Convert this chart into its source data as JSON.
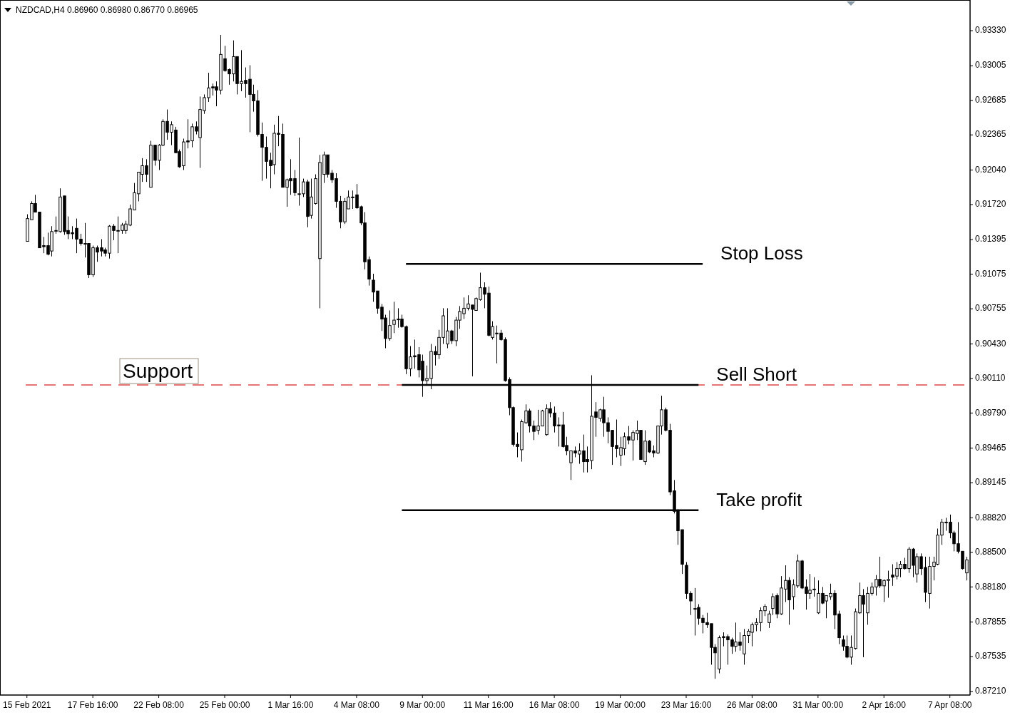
{
  "chart_data": {
    "type": "candlestick",
    "title": "NZDCAD,H4 0.86960 0.86980 0.86770 0.86965",
    "color": "#000000",
    "categories": [
      "15 Feb 2021",
      null,
      null,
      null,
      null,
      null,
      null,
      null,
      null,
      null,
      null,
      null,
      null,
      null,
      null,
      null,
      "17 Feb 16:00",
      null,
      null,
      null,
      null,
      null,
      null,
      null,
      null,
      null,
      null,
      null,
      null,
      null,
      null,
      null,
      "22 Feb 08:00",
      null,
      null,
      null,
      null,
      null,
      null,
      null,
      null,
      null,
      null,
      null,
      null,
      null,
      null,
      null,
      "25 Feb 00:00",
      null,
      null,
      null,
      null,
      null,
      null,
      null,
      null,
      null,
      null,
      null,
      null,
      null,
      null,
      null,
      "1 Mar 16:00",
      null,
      null,
      null,
      null,
      null,
      null,
      null,
      null,
      null,
      null,
      null,
      null,
      null,
      null,
      null,
      "4 Mar 08:00",
      null,
      null,
      null,
      null,
      null,
      null,
      null,
      null,
      null,
      null,
      null,
      null,
      null,
      null,
      null,
      "9 Mar 00:00",
      null,
      null,
      null,
      null,
      null,
      null,
      null,
      null,
      null,
      null,
      null,
      null,
      null,
      null,
      null,
      "11 Mar 16:00",
      null,
      null,
      null,
      null,
      null,
      null,
      null,
      null,
      null,
      null,
      null,
      null,
      null,
      null,
      null,
      "16 Mar 08:00",
      null,
      null,
      null,
      null,
      null,
      null,
      null,
      null,
      null,
      null,
      null,
      null,
      null,
      null,
      null,
      "19 Mar 00:00",
      null,
      null,
      null,
      null,
      null,
      null,
      null,
      null,
      null,
      null,
      null,
      null,
      null,
      null,
      null,
      "23 Mar 16:00",
      null,
      null,
      null,
      null,
      null,
      null,
      null,
      null,
      null,
      null,
      null,
      null,
      null,
      null,
      null,
      "26 Mar 08:00",
      null,
      null,
      null,
      null,
      null,
      null,
      null,
      null,
      null,
      null,
      null,
      null,
      null,
      null,
      null,
      "31 Mar 00:00",
      null,
      null,
      null,
      null,
      null,
      null,
      null,
      null,
      null,
      null,
      null,
      null,
      null,
      null,
      null,
      "2 Apr 16:00",
      null,
      null,
      null,
      null,
      null,
      null,
      null,
      null,
      null,
      null,
      null,
      null,
      null,
      null,
      null,
      "7 Apr 08:00",
      null,
      null,
      null,
      null
    ],
    "ohlc": [
      [
        0.9138,
        0.9163,
        0.9138,
        0.9159
      ],
      [
        0.9158,
        0.9175,
        0.9158,
        0.9173
      ],
      [
        0.9173,
        0.9181,
        0.9165,
        0.9165
      ],
      [
        0.9165,
        0.9165,
        0.9132,
        0.9132
      ],
      [
        0.9134,
        0.9142,
        0.9127,
        0.9133
      ],
      [
        0.9134,
        0.9146,
        0.9125,
        0.9126
      ],
      [
        0.9129,
        0.9152,
        0.9124,
        0.9147
      ],
      [
        0.9148,
        0.9161,
        0.9145,
        0.9148
      ],
      [
        0.9147,
        0.9187,
        0.9146,
        0.9179
      ],
      [
        0.918,
        0.918,
        0.9144,
        0.9147
      ],
      [
        0.9148,
        0.9161,
        0.914,
        0.9145
      ],
      [
        0.9146,
        0.9152,
        0.914,
        0.9145
      ],
      [
        0.915,
        0.9159,
        0.9127,
        0.914
      ],
      [
        0.914,
        0.9145,
        0.9134,
        0.9136
      ],
      [
        0.9136,
        0.9155,
        0.9123,
        0.9136
      ],
      [
        0.9136,
        0.9136,
        0.9104,
        0.9107
      ],
      [
        0.9107,
        0.9134,
        0.9105,
        0.9132
      ],
      [
        0.9132,
        0.9134,
        0.9119,
        0.9128
      ],
      [
        0.9132,
        0.914,
        0.9124,
        0.9129
      ],
      [
        0.913,
        0.9132,
        0.9124,
        0.9127
      ],
      [
        0.9127,
        0.9153,
        0.9122,
        0.9152
      ],
      [
        0.9152,
        0.9154,
        0.9139,
        0.9148
      ],
      [
        0.9148,
        0.9161,
        0.9127,
        0.9148
      ],
      [
        0.9148,
        0.9155,
        0.9145,
        0.9153
      ],
      [
        0.9148,
        0.9157,
        0.9145,
        0.9154
      ],
      [
        0.9153,
        0.9172,
        0.9152,
        0.9168
      ],
      [
        0.9167,
        0.9192,
        0.9167,
        0.9183
      ],
      [
        0.9182,
        0.9202,
        0.9175,
        0.9202
      ],
      [
        0.92,
        0.9215,
        0.9193,
        0.9208
      ],
      [
        0.9208,
        0.9214,
        0.9193,
        0.92
      ],
      [
        0.9188,
        0.9231,
        0.9188,
        0.9227
      ],
      [
        0.9227,
        0.9227,
        0.9208,
        0.9213
      ],
      [
        0.9213,
        0.9228,
        0.9204,
        0.9227
      ],
      [
        0.9227,
        0.9251,
        0.9226,
        0.9249
      ],
      [
        0.9249,
        0.926,
        0.9232,
        0.9239
      ],
      [
        0.9239,
        0.9249,
        0.9227,
        0.9246
      ],
      [
        0.9241,
        0.9244,
        0.922,
        0.922
      ],
      [
        0.9221,
        0.9223,
        0.9206,
        0.9207
      ],
      [
        0.9208,
        0.9233,
        0.9204,
        0.923
      ],
      [
        0.9231,
        0.9251,
        0.9224,
        0.923
      ],
      [
        0.9231,
        0.9247,
        0.9225,
        0.9244
      ],
      [
        0.9244,
        0.9249,
        0.9237,
        0.924
      ],
      [
        0.9234,
        0.9272,
        0.9206,
        0.926
      ],
      [
        0.9259,
        0.9274,
        0.9256,
        0.9271
      ],
      [
        0.9271,
        0.9294,
        0.9267,
        0.928
      ],
      [
        0.9281,
        0.9284,
        0.9273,
        0.928
      ],
      [
        0.9281,
        0.9286,
        0.9263,
        0.9278
      ],
      [
        0.9278,
        0.9329,
        0.9274,
        0.9311
      ],
      [
        0.9307,
        0.9319,
        0.9295,
        0.9296
      ],
      [
        0.9297,
        0.9298,
        0.9283,
        0.9293
      ],
      [
        0.9293,
        0.9324,
        0.9286,
        0.9309
      ],
      [
        0.9309,
        0.9309,
        0.9274,
        0.9284
      ],
      [
        0.9284,
        0.9315,
        0.9277,
        0.9286
      ],
      [
        0.9287,
        0.9299,
        0.9271,
        0.9284
      ],
      [
        0.9288,
        0.9301,
        0.9239,
        0.9274
      ],
      [
        0.9274,
        0.9283,
        0.9258,
        0.9268
      ],
      [
        0.9268,
        0.9278,
        0.9235,
        0.9237
      ],
      [
        0.9237,
        0.9248,
        0.9194,
        0.9225
      ],
      [
        0.9225,
        0.9235,
        0.9196,
        0.9212
      ],
      [
        0.9213,
        0.922,
        0.9187,
        0.9208
      ],
      [
        0.9209,
        0.9246,
        0.92,
        0.9238
      ],
      [
        0.9238,
        0.9254,
        0.9226,
        0.9237
      ],
      [
        0.9237,
        0.9247,
        0.9188,
        0.9188
      ],
      [
        0.9188,
        0.9196,
        0.917,
        0.9195
      ],
      [
        0.9196,
        0.9214,
        0.9181,
        0.9194
      ],
      [
        0.9196,
        0.9204,
        0.918,
        0.9183
      ],
      [
        0.9182,
        0.9234,
        0.9171,
        0.9182
      ],
      [
        0.9182,
        0.9196,
        0.9179,
        0.9193
      ],
      [
        0.9193,
        0.9195,
        0.9151,
        0.9161
      ],
      [
        0.9162,
        0.9196,
        0.9159,
        0.9179
      ],
      [
        0.9173,
        0.92,
        0.9172,
        0.9196
      ],
      [
        0.9122,
        0.9218,
        0.9076,
        0.9211
      ],
      [
        0.92,
        0.9221,
        0.9192,
        0.9218
      ],
      [
        0.9218,
        0.9218,
        0.9197,
        0.92
      ],
      [
        0.9201,
        0.9204,
        0.9192,
        0.9195
      ],
      [
        0.9196,
        0.9201,
        0.9169,
        0.9175
      ],
      [
        0.9175,
        0.918,
        0.915,
        0.9156
      ],
      [
        0.9156,
        0.9178,
        0.9154,
        0.9175
      ],
      [
        0.9168,
        0.9185,
        0.9168,
        0.9179
      ],
      [
        0.9179,
        0.9185,
        0.9168,
        0.9179
      ],
      [
        0.9181,
        0.9191,
        0.9168,
        0.9169
      ],
      [
        0.917,
        0.9171,
        0.9153,
        0.9155
      ],
      [
        0.9155,
        0.9165,
        0.9112,
        0.9119
      ],
      [
        0.9121,
        0.9124,
        0.9097,
        0.9103
      ],
      [
        0.9102,
        0.9108,
        0.9082,
        0.9091
      ],
      [
        0.9092,
        0.9092,
        0.9071,
        0.9076
      ],
      [
        0.9077,
        0.908,
        0.9055,
        0.9066
      ],
      [
        0.9067,
        0.907,
        0.9039,
        0.9048
      ],
      [
        0.9048,
        0.9074,
        0.9046,
        0.906
      ],
      [
        0.9061,
        0.9082,
        0.9053,
        0.9065
      ],
      [
        0.9066,
        0.9076,
        0.9058,
        0.9066
      ],
      [
        0.9066,
        0.907,
        0.9058,
        0.9059
      ],
      [
        0.9059,
        0.906,
        0.9015,
        0.902
      ],
      [
        0.902,
        0.9041,
        0.9013,
        0.9031
      ],
      [
        0.9032,
        0.9047,
        0.902,
        0.9031
      ],
      [
        0.9033,
        0.904,
        0.9012,
        0.9019
      ],
      [
        0.9027,
        0.9033,
        0.8994,
        0.9009
      ],
      [
        0.9009,
        0.9023,
        0.9005,
        0.9011
      ],
      [
        0.9011,
        0.9043,
        0.9001,
        0.9036
      ],
      [
        0.9036,
        0.9041,
        0.9023,
        0.9033
      ],
      [
        0.9033,
        0.9056,
        0.9029,
        0.9049
      ],
      [
        0.9049,
        0.9076,
        0.9043,
        0.9069
      ],
      [
        0.9043,
        0.9076,
        0.9039,
        0.9055
      ],
      [
        0.9055,
        0.9056,
        0.9043,
        0.9046
      ],
      [
        0.9046,
        0.9068,
        0.9041,
        0.9065
      ],
      [
        0.9065,
        0.9078,
        0.9057,
        0.9073
      ],
      [
        0.9071,
        0.9086,
        0.9066,
        0.9076
      ],
      [
        0.9076,
        0.9088,
        0.9074,
        0.908
      ],
      [
        0.9079,
        0.9079,
        0.9013,
        0.9075
      ],
      [
        0.9074,
        0.9086,
        0.9074,
        0.9085
      ],
      [
        0.9084,
        0.9109,
        0.9083,
        0.9095
      ],
      [
        0.9095,
        0.91,
        0.9076,
        0.9089
      ],
      [
        0.909,
        0.9096,
        0.905,
        0.9051
      ],
      [
        0.9049,
        0.9064,
        0.9047,
        0.9059
      ],
      [
        0.9053,
        0.906,
        0.9025,
        0.9053
      ],
      [
        0.9053,
        0.9056,
        0.9046,
        0.9047
      ],
      [
        0.9047,
        0.9049,
        0.9008,
        0.9009
      ],
      [
        0.901,
        0.9012,
        0.8977,
        0.8984
      ],
      [
        0.8984,
        0.8985,
        0.8948,
        0.895
      ],
      [
        0.895,
        0.8961,
        0.8938,
        0.8948
      ],
      [
        0.8945,
        0.8973,
        0.8934,
        0.8971
      ],
      [
        0.897,
        0.8987,
        0.8969,
        0.8981
      ],
      [
        0.8981,
        0.8983,
        0.8961,
        0.8967
      ],
      [
        0.8967,
        0.8972,
        0.8954,
        0.8962
      ],
      [
        0.8963,
        0.8982,
        0.8959,
        0.8967
      ],
      [
        0.8967,
        0.8982,
        0.8967,
        0.8981
      ],
      [
        0.8959,
        0.8987,
        0.8958,
        0.8983
      ],
      [
        0.8983,
        0.8989,
        0.8975,
        0.8979
      ],
      [
        0.8979,
        0.8985,
        0.8961,
        0.8967
      ],
      [
        0.8968,
        0.8975,
        0.8948,
        0.8967
      ],
      [
        0.8968,
        0.898,
        0.8947,
        0.8948
      ],
      [
        0.8949,
        0.8957,
        0.894,
        0.8944
      ],
      [
        0.8933,
        0.8944,
        0.8917,
        0.8944
      ],
      [
        0.8944,
        0.8948,
        0.8938,
        0.8942
      ],
      [
        0.8941,
        0.8951,
        0.8932,
        0.8944
      ],
      [
        0.8944,
        0.8959,
        0.8924,
        0.8934
      ],
      [
        0.8936,
        0.8948,
        0.8924,
        0.8934
      ],
      [
        0.8935,
        0.9014,
        0.8927,
        0.8976
      ],
      [
        0.898,
        0.8989,
        0.8957,
        0.8975
      ],
      [
        0.8974,
        0.8983,
        0.8971,
        0.8982
      ],
      [
        0.8982,
        0.8994,
        0.8957,
        0.897
      ],
      [
        0.897,
        0.8975,
        0.8951,
        0.8962
      ],
      [
        0.8963,
        0.8963,
        0.8931,
        0.8948
      ],
      [
        0.8949,
        0.8973,
        0.8938,
        0.8946
      ],
      [
        0.894,
        0.8957,
        0.893,
        0.8947
      ],
      [
        0.8946,
        0.8961,
        0.894,
        0.8957
      ],
      [
        0.8957,
        0.8967,
        0.895,
        0.8954
      ],
      [
        0.8954,
        0.8963,
        0.8935,
        0.8961
      ],
      [
        0.896,
        0.8972,
        0.8954,
        0.8963
      ],
      [
        0.8963,
        0.8963,
        0.8936,
        0.8936
      ],
      [
        0.8934,
        0.8963,
        0.8931,
        0.8953
      ],
      [
        0.8953,
        0.8954,
        0.8942,
        0.8943
      ],
      [
        0.8944,
        0.8949,
        0.8938,
        0.8942
      ],
      [
        0.8942,
        0.8967,
        0.8941,
        0.8967
      ],
      [
        0.8967,
        0.8995,
        0.8959,
        0.8982
      ],
      [
        0.8982,
        0.8984,
        0.8962,
        0.8963
      ],
      [
        0.8963,
        0.8969,
        0.8903,
        0.8906
      ],
      [
        0.8907,
        0.8917,
        0.8886,
        0.8888
      ],
      [
        0.8889,
        0.889,
        0.8857,
        0.887
      ],
      [
        0.8871,
        0.8871,
        0.883,
        0.8839
      ],
      [
        0.8838,
        0.8841,
        0.8807,
        0.8812
      ],
      [
        0.8812,
        0.8814,
        0.8792,
        0.8805
      ],
      [
        0.8798,
        0.8817,
        0.8773,
        0.8798
      ],
      [
        0.8799,
        0.8802,
        0.8783,
        0.8789
      ],
      [
        0.8789,
        0.8792,
        0.8775,
        0.8785
      ],
      [
        0.8785,
        0.8794,
        0.878,
        0.8783
      ],
      [
        0.8784,
        0.8784,
        0.8746,
        0.8762
      ],
      [
        0.8762,
        0.8765,
        0.8733,
        0.8757
      ],
      [
        0.8742,
        0.8773,
        0.8738,
        0.8771
      ],
      [
        0.8772,
        0.8776,
        0.8763,
        0.8771
      ],
      [
        0.8772,
        0.8774,
        0.8746,
        0.8769
      ],
      [
        0.8769,
        0.8771,
        0.8756,
        0.8763
      ],
      [
        0.8763,
        0.8785,
        0.8758,
        0.8767
      ],
      [
        0.8767,
        0.8776,
        0.8759,
        0.8764
      ],
      [
        0.8756,
        0.8779,
        0.8746,
        0.8773
      ],
      [
        0.8773,
        0.8779,
        0.8766,
        0.8777
      ],
      [
        0.8776,
        0.8785,
        0.8763,
        0.8783
      ],
      [
        0.8783,
        0.8789,
        0.8777,
        0.8785
      ],
      [
        0.8785,
        0.8799,
        0.8777,
        0.8796
      ],
      [
        0.8796,
        0.8802,
        0.8791,
        0.88
      ],
      [
        0.8785,
        0.8796,
        0.878,
        0.8793
      ],
      [
        0.8798,
        0.8812,
        0.8792,
        0.8809
      ],
      [
        0.881,
        0.8812,
        0.8789,
        0.8793
      ],
      [
        0.8793,
        0.8828,
        0.8792,
        0.8817
      ],
      [
        0.8816,
        0.8838,
        0.8804,
        0.8824
      ],
      [
        0.8824,
        0.8827,
        0.8783,
        0.8806
      ],
      [
        0.8809,
        0.8825,
        0.8797,
        0.882
      ],
      [
        0.8819,
        0.8848,
        0.8817,
        0.8842
      ],
      [
        0.8842,
        0.8843,
        0.8816,
        0.8817
      ],
      [
        0.8818,
        0.8825,
        0.8797,
        0.8812
      ],
      [
        0.8812,
        0.883,
        0.8807,
        0.8815
      ],
      [
        0.8816,
        0.8827,
        0.8809,
        0.8816
      ],
      [
        0.8794,
        0.8824,
        0.8793,
        0.8812
      ],
      [
        0.8812,
        0.8818,
        0.8802,
        0.8803
      ],
      [
        0.8805,
        0.881,
        0.8789,
        0.881
      ],
      [
        0.8809,
        0.8821,
        0.8806,
        0.8812
      ],
      [
        0.8812,
        0.8815,
        0.8779,
        0.8792
      ],
      [
        0.8793,
        0.8796,
        0.8765,
        0.8771
      ],
      [
        0.8769,
        0.8773,
        0.8759,
        0.8763
      ],
      [
        0.8763,
        0.8773,
        0.8752,
        0.8753
      ],
      [
        0.8753,
        0.8773,
        0.8746,
        0.8762
      ],
      [
        0.8761,
        0.8798,
        0.876,
        0.8795
      ],
      [
        0.8794,
        0.8822,
        0.8793,
        0.881
      ],
      [
        0.881,
        0.8816,
        0.8753,
        0.8802
      ],
      [
        0.8794,
        0.8818,
        0.8783,
        0.8812
      ],
      [
        0.8812,
        0.8822,
        0.881,
        0.8818
      ],
      [
        0.8818,
        0.8829,
        0.881,
        0.8825
      ],
      [
        0.8825,
        0.8846,
        0.8817,
        0.8819
      ],
      [
        0.8819,
        0.8825,
        0.8804,
        0.8824
      ],
      [
        0.8824,
        0.8833,
        0.8808,
        0.8825
      ],
      [
        0.8829,
        0.8839,
        0.8819,
        0.8827
      ],
      [
        0.8828,
        0.8841,
        0.8825,
        0.8835
      ],
      [
        0.8835,
        0.8842,
        0.8827,
        0.8839
      ],
      [
        0.8839,
        0.8845,
        0.8834,
        0.8835
      ],
      [
        0.8835,
        0.8855,
        0.8831,
        0.8853
      ],
      [
        0.8853,
        0.8854,
        0.8827,
        0.8838
      ],
      [
        0.883,
        0.8849,
        0.8822,
        0.8846
      ],
      [
        0.8846,
        0.8849,
        0.8829,
        0.8835
      ],
      [
        0.8836,
        0.8846,
        0.8804,
        0.8813
      ],
      [
        0.8812,
        0.8846,
        0.8798,
        0.8837
      ],
      [
        0.8837,
        0.8846,
        0.8824,
        0.8841
      ],
      [
        0.8839,
        0.8872,
        0.8838,
        0.8866
      ],
      [
        0.8866,
        0.8881,
        0.8857,
        0.8878
      ],
      [
        0.8878,
        0.8882,
        0.887,
        0.8878
      ],
      [
        0.8878,
        0.8885,
        0.8863,
        0.8868
      ],
      [
        0.8868,
        0.887,
        0.8851,
        0.8858
      ],
      [
        0.8858,
        0.8878,
        0.8849,
        0.8851
      ],
      [
        0.8851,
        0.8851,
        0.8834,
        0.8835
      ],
      [
        0.8831,
        0.8846,
        0.8824,
        0.8843
      ]
    ],
    "series": [
      {
        "type": "line",
        "name": "Stop Loss",
        "color": "#000000",
        "values": [
          null,
          null,
          null,
          null,
          null,
          null,
          null,
          null,
          null,
          null,
          null,
          null,
          null,
          null,
          null,
          null,
          null,
          null,
          null,
          null,
          null,
          null,
          null,
          null,
          null,
          null,
          null,
          null,
          null,
          null,
          null,
          null,
          null,
          null,
          null,
          null,
          null,
          null,
          null,
          null,
          null,
          null,
          null,
          null,
          null,
          null,
          null,
          null,
          null,
          null,
          null,
          null,
          null,
          null,
          null,
          null,
          null,
          null,
          null,
          null,
          null,
          null,
          null,
          null,
          null,
          null,
          null,
          null,
          null,
          null,
          null,
          null,
          null,
          null,
          null,
          null,
          null,
          null,
          null,
          null,
          null,
          null,
          null,
          null,
          null,
          null,
          null,
          null,
          null,
          null,
          null,
          null,
          0.9117,
          0.9117,
          0.9117,
          0.9117,
          0.9117,
          0.9117,
          0.9117,
          0.9117,
          0.9117,
          0.9117,
          0.9117,
          0.9117,
          0.9117,
          0.9117,
          0.9117,
          0.9117,
          0.9117,
          0.9117,
          0.9117,
          0.9117,
          0.9117,
          0.9117,
          0.9117,
          0.9117,
          0.9117,
          0.9117,
          0.9117,
          0.9117,
          0.9117,
          0.9117,
          0.9117,
          0.9117,
          0.9117,
          0.9117,
          0.9117,
          0.9117,
          0.9117,
          0.9117,
          0.9117,
          0.9117,
          0.9117,
          0.9117,
          0.9117,
          0.9117,
          0.9117,
          0.9117,
          0.9117,
          0.9117,
          0.9117,
          0.9117,
          0.9117,
          0.9117,
          0.9117,
          0.9117,
          0.9117,
          0.9117,
          0.9117,
          0.9117,
          0.9117,
          0.9117,
          0.9117,
          0.9117,
          0.9117,
          0.9117,
          0.9117,
          0.9117,
          0.9117,
          0.9117,
          0.9117,
          0.9117,
          0.9117,
          0.9117,
          0.9117,
          null,
          null,
          null,
          null,
          null,
          null,
          null,
          null,
          null,
          null,
          null,
          null,
          null,
          null,
          null,
          null,
          null,
          null,
          null,
          null,
          null,
          null,
          null,
          null,
          null,
          null,
          null,
          null,
          null,
          null,
          null,
          null,
          null,
          null,
          null,
          null,
          null,
          null,
          null,
          null,
          null,
          null,
          null,
          null,
          null,
          null,
          null,
          null,
          null,
          null,
          null,
          null,
          null,
          null,
          null,
          null,
          null,
          null,
          null,
          null,
          null,
          null,
          null,
          null
        ]
      },
      {
        "type": "line",
        "name": "Sell Short",
        "color": "#000000",
        "values": [
          null,
          null,
          null,
          null,
          null,
          null,
          null,
          null,
          null,
          null,
          null,
          null,
          null,
          null,
          null,
          null,
          null,
          null,
          null,
          null,
          null,
          null,
          null,
          null,
          null,
          null,
          null,
          null,
          null,
          null,
          null,
          null,
          null,
          null,
          null,
          null,
          null,
          null,
          null,
          null,
          null,
          null,
          null,
          null,
          null,
          null,
          null,
          null,
          null,
          null,
          null,
          null,
          null,
          null,
          null,
          null,
          null,
          null,
          null,
          null,
          null,
          null,
          null,
          null,
          null,
          null,
          null,
          null,
          null,
          null,
          null,
          null,
          null,
          null,
          null,
          null,
          null,
          null,
          null,
          null,
          null,
          null,
          null,
          null,
          null,
          null,
          null,
          null,
          null,
          null,
          null,
          0.9005,
          0.9005,
          0.9005,
          0.9005,
          0.9005,
          0.9005,
          0.9005,
          0.9005,
          0.9005,
          0.9005,
          0.9005,
          0.9005,
          0.9005,
          0.9005,
          0.9005,
          0.9005,
          0.9005,
          0.9005,
          0.9005,
          0.9005,
          0.9005,
          0.9005,
          0.9005,
          0.9005,
          0.9005,
          0.9005,
          0.9005,
          0.9005,
          0.9005,
          0.9005,
          0.9005,
          0.9005,
          0.9005,
          0.9005,
          0.9005,
          0.9005,
          0.9005,
          0.9005,
          0.9005,
          0.9005,
          0.9005,
          0.9005,
          0.9005,
          0.9005,
          0.9005,
          0.9005,
          0.9005,
          0.9005,
          0.9005,
          0.9005,
          0.9005,
          0.9005,
          0.9005,
          0.9005,
          0.9005,
          0.9005,
          0.9005,
          0.9005,
          0.9005,
          0.9005,
          0.9005,
          0.9005,
          0.9005,
          0.9005,
          0.9005,
          0.9005,
          0.9005,
          0.9005,
          0.9005,
          0.9005,
          0.9005,
          0.9005,
          0.9005,
          null,
          null,
          null,
          null,
          null,
          null,
          null,
          null,
          null,
          null,
          null,
          null,
          null,
          null,
          null,
          null,
          null,
          null,
          null,
          null,
          null,
          null,
          null,
          null,
          null,
          null,
          null,
          null,
          null,
          null,
          null,
          null,
          null,
          null,
          null,
          null,
          null,
          null,
          null,
          null,
          null,
          null,
          null,
          null,
          null,
          null,
          null,
          null,
          null,
          null,
          null,
          null,
          null,
          null,
          null,
          null,
          null,
          null,
          null,
          null,
          null,
          null,
          null,
          null,
          null
        ]
      },
      {
        "type": "line",
        "name": "Take profit",
        "color": "#000000",
        "values": [
          null,
          null,
          null,
          null,
          null,
          null,
          null,
          null,
          null,
          null,
          null,
          null,
          null,
          null,
          null,
          null,
          null,
          null,
          null,
          null,
          null,
          null,
          null,
          null,
          null,
          null,
          null,
          null,
          null,
          null,
          null,
          null,
          null,
          null,
          null,
          null,
          null,
          null,
          null,
          null,
          null,
          null,
          null,
          null,
          null,
          null,
          null,
          null,
          null,
          null,
          null,
          null,
          null,
          null,
          null,
          null,
          null,
          null,
          null,
          null,
          null,
          null,
          null,
          null,
          null,
          null,
          null,
          null,
          null,
          null,
          null,
          null,
          null,
          null,
          null,
          null,
          null,
          null,
          null,
          null,
          null,
          null,
          null,
          null,
          null,
          null,
          null,
          null,
          null,
          null,
          null,
          0.8889,
          0.8889,
          0.8889,
          0.8889,
          0.8889,
          0.8889,
          0.8889,
          0.8889,
          0.8889,
          0.8889,
          0.8889,
          0.8889,
          0.8889,
          0.8889,
          0.8889,
          0.8889,
          0.8889,
          0.8889,
          0.8889,
          0.8889,
          0.8889,
          0.8889,
          0.8889,
          0.8889,
          0.8889,
          0.8889,
          0.8889,
          0.8889,
          0.8889,
          0.8889,
          0.8889,
          0.8889,
          0.8889,
          0.8889,
          0.8889,
          0.8889,
          0.8889,
          0.8889,
          0.8889,
          0.8889,
          0.8889,
          0.8889,
          0.8889,
          0.8889,
          0.8889,
          0.8889,
          0.8889,
          0.8889,
          0.8889,
          0.8889,
          0.8889,
          0.8889,
          0.8889,
          0.8889,
          0.8889,
          0.8889,
          0.8889,
          0.8889,
          0.8889,
          0.8889,
          0.8889,
          0.8889,
          0.8889,
          0.8889,
          0.8889,
          0.8889,
          0.8889,
          0.8889,
          0.8889,
          0.8889,
          0.8889,
          0.8889,
          0.8889,
          null,
          null,
          null,
          null,
          null,
          null,
          null,
          null,
          null,
          null,
          null,
          null,
          null,
          null,
          null,
          null,
          null,
          null,
          null,
          null,
          null,
          null,
          null,
          null,
          null,
          null,
          null,
          null,
          null,
          null,
          null,
          null,
          null,
          null,
          null,
          null,
          null,
          null,
          null,
          null,
          null,
          null,
          null,
          null,
          null,
          null,
          null,
          null,
          null,
          null,
          null,
          null,
          null,
          null,
          null,
          null,
          null,
          null,
          null,
          null,
          null,
          null,
          null,
          null,
          null
        ]
      }
    ],
    "ref_lines": [
      {
        "axis": "y",
        "value": 0.9005,
        "label": "Support",
        "color": "#e04848",
        "line_style": "dashed"
      }
    ],
    "ylim": [
      0.87179,
      0.93614
    ],
    "yticks": [
      {
        "value": 0.9333,
        "label": "0.93330"
      },
      {
        "value": 0.93005,
        "label": "0.93005"
      },
      {
        "value": 0.92685,
        "label": "0.92685"
      },
      {
        "value": 0.92365,
        "label": "0.92365"
      },
      {
        "value": 0.9204,
        "label": "0.92040"
      },
      {
        "value": 0.9172,
        "label": "0.91720"
      },
      {
        "value": 0.91395,
        "label": "0.91395"
      },
      {
        "value": 0.91075,
        "label": "0.91075"
      },
      {
        "value": 0.90755,
        "label": "0.90755"
      },
      {
        "value": 0.9043,
        "label": "0.90430"
      },
      {
        "value": 0.9011,
        "label": "0.90110"
      },
      {
        "value": 0.8979,
        "label": "0.89790"
      },
      {
        "value": 0.89465,
        "label": "0.89465"
      },
      {
        "value": 0.89145,
        "label": "0.89145"
      },
      {
        "value": 0.8882,
        "label": "0.88820"
      },
      {
        "value": 0.885,
        "label": "0.88500"
      },
      {
        "value": 0.8818,
        "label": "0.88180"
      },
      {
        "value": 0.87855,
        "label": "0.87855"
      },
      {
        "value": 0.87535,
        "label": "0.87535"
      },
      {
        "value": 0.8721,
        "label": "0.87210"
      }
    ]
  }
}
